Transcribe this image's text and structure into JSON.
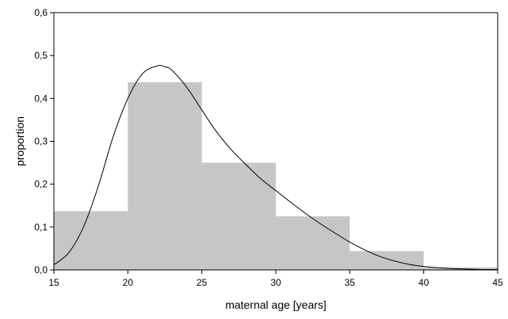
{
  "chart_data": {
    "type": "bar",
    "title": "",
    "xlabel": "maternal age [years]",
    "ylabel": "proportion",
    "xlim": [
      15,
      45
    ],
    "ylim": [
      0,
      0.6
    ],
    "grid": false,
    "x_ticks": [
      15,
      20,
      25,
      30,
      35,
      40,
      45
    ],
    "x_tick_labels": [
      "15",
      "20",
      "25",
      "30",
      "35",
      "40",
      "45"
    ],
    "y_ticks": [
      0,
      0.1,
      0.2,
      0.3,
      0.4,
      0.5,
      0.6
    ],
    "y_tick_labels": [
      "0,0",
      "0,1",
      "0,2",
      "0,3",
      "0,4",
      "0,5",
      "0,6"
    ],
    "histogram": {
      "bins": [
        {
          "x0": 15,
          "x1": 20,
          "value": 0.137
        },
        {
          "x0": 20,
          "x1": 25,
          "value": 0.438
        },
        {
          "x0": 25,
          "x1": 30,
          "value": 0.25
        },
        {
          "x0": 30,
          "x1": 35,
          "value": 0.125
        },
        {
          "x0": 35,
          "x1": 40,
          "value": 0.044
        },
        {
          "x0": 40,
          "x1": 45,
          "value": 0.006
        }
      ],
      "color": "#c6c6c6"
    },
    "curve": {
      "color": "#000000",
      "x": [
        15,
        16,
        17,
        18,
        19,
        20,
        21,
        22,
        22.5,
        23,
        24,
        25,
        26,
        27,
        28,
        29,
        30,
        31,
        32,
        33,
        34,
        35,
        36,
        37,
        38,
        39,
        40,
        41,
        42,
        43,
        44,
        45
      ],
      "y": [
        0.012,
        0.04,
        0.1,
        0.195,
        0.31,
        0.4,
        0.458,
        0.476,
        0.474,
        0.465,
        0.425,
        0.373,
        0.322,
        0.28,
        0.245,
        0.212,
        0.185,
        0.158,
        0.132,
        0.108,
        0.086,
        0.065,
        0.047,
        0.032,
        0.021,
        0.013,
        0.008,
        0.005,
        0.003,
        0.002,
        0.001,
        0.001
      ]
    }
  }
}
